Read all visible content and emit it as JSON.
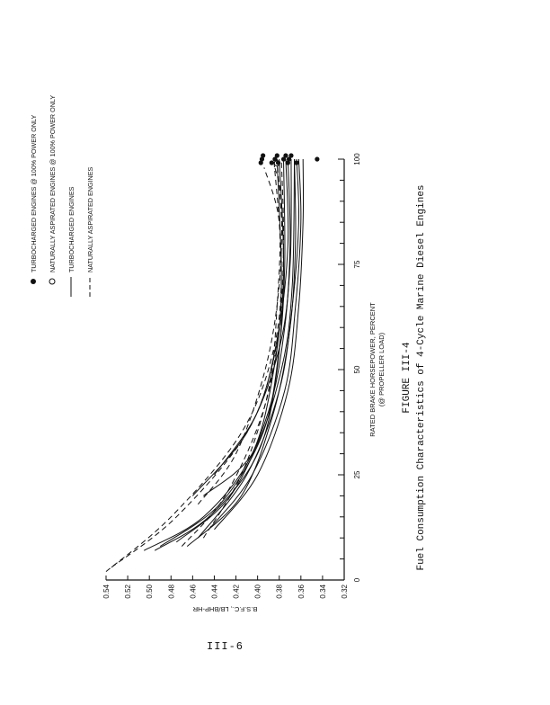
{
  "page_number": "III-6",
  "chart_data": {
    "type": "line",
    "title": "Fuel Consumption Characteristics of 4-Cycle Marine Diesel Engines",
    "figure_label": "FIGURE III-4",
    "xlabel": "RATED BRAKE HORSEPOWER, PERCENT",
    "xlabel_sub": "(@ PROPELLER LOAD)",
    "ylabel": "B.S.F.C., LB/BHP-HR",
    "xlim": [
      0,
      100
    ],
    "ylim": [
      0.32,
      0.54
    ],
    "x_ticks": [
      "0",
      "25",
      "50",
      "75",
      "100"
    ],
    "y_ticks": [
      "0.32",
      "0.34",
      "0.36",
      "0.38",
      "0.40",
      "0.42",
      "0.44",
      "0.46",
      "0.48",
      "0.50",
      "0.52",
      "0.54"
    ],
    "legend": [
      {
        "label": "NATURALLY ASPIRATED ENGINES",
        "style": "dashed"
      },
      {
        "label": "TURBOCHARGED ENGINES",
        "style": "solid"
      },
      {
        "label": "NATURALLY ASPIRATED ENGINES @ 100% POWER ONLY",
        "style": "open-circle"
      },
      {
        "label": "TURBOCHARGED ENGINES @ 100% POWER ONLY",
        "style": "filled-circle"
      }
    ],
    "legend_placement": "top, rotated",
    "grid": false,
    "series": [
      {
        "style": "dashed",
        "x": [
          2,
          15,
          35,
          55,
          75,
          100
        ],
        "y": [
          0.54,
          0.48,
          0.415,
          0.385,
          0.378,
          0.385
        ]
      },
      {
        "style": "dashed",
        "x": [
          3,
          15,
          35,
          55,
          75,
          100
        ],
        "y": [
          0.535,
          0.475,
          0.41,
          0.383,
          0.376,
          0.382
        ]
      },
      {
        "style": "dashed",
        "x": [
          8,
          20,
          40,
          60,
          80,
          100
        ],
        "y": [
          0.47,
          0.43,
          0.395,
          0.38,
          0.376,
          0.378
        ]
      },
      {
        "style": "dashed",
        "x": [
          10,
          25,
          45,
          65,
          85,
          98
        ],
        "y": [
          0.45,
          0.415,
          0.39,
          0.382,
          0.38,
          0.394
        ]
      },
      {
        "style": "dashed",
        "x": [
          18,
          30,
          50,
          70,
          90,
          98
        ],
        "y": [
          0.455,
          0.42,
          0.393,
          0.38,
          0.378,
          0.384
        ]
      },
      {
        "style": "solid",
        "x": [
          7,
          15,
          30,
          50,
          70,
          100
        ],
        "y": [
          0.505,
          0.45,
          0.405,
          0.385,
          0.378,
          0.382
        ]
      },
      {
        "style": "solid",
        "x": [
          7,
          15,
          30,
          50,
          75,
          100
        ],
        "y": [
          0.495,
          0.445,
          0.4,
          0.382,
          0.376,
          0.38
        ]
      },
      {
        "style": "solid",
        "x": [
          8,
          18,
          35,
          55,
          75,
          100
        ],
        "y": [
          0.49,
          0.435,
          0.395,
          0.38,
          0.375,
          0.376
        ]
      },
      {
        "style": "solid",
        "x": [
          9,
          20,
          40,
          60,
          80,
          100
        ],
        "y": [
          0.475,
          0.425,
          0.39,
          0.375,
          0.37,
          0.372
        ]
      },
      {
        "style": "solid",
        "x": [
          8,
          20,
          40,
          60,
          80,
          100
        ],
        "y": [
          0.465,
          0.415,
          0.385,
          0.37,
          0.365,
          0.366
        ]
      },
      {
        "style": "solid",
        "x": [
          10,
          25,
          45,
          65,
          85,
          100
        ],
        "y": [
          0.455,
          0.41,
          0.38,
          0.368,
          0.362,
          0.364
        ]
      },
      {
        "style": "solid",
        "x": [
          12,
          25,
          45,
          65,
          85,
          100
        ],
        "y": [
          0.445,
          0.405,
          0.375,
          0.365,
          0.36,
          0.362
        ]
      },
      {
        "style": "solid",
        "x": [
          12,
          25,
          45,
          65,
          85,
          100
        ],
        "y": [
          0.44,
          0.4,
          0.372,
          0.362,
          0.358,
          0.358
        ]
      },
      {
        "style": "solid",
        "x": [
          20,
          35,
          55,
          75,
          100
        ],
        "y": [
          0.46,
          0.41,
          0.38,
          0.37,
          0.369
        ]
      },
      {
        "style": "solid",
        "x": [
          20,
          30,
          50,
          70,
          100
        ],
        "y": [
          0.45,
          0.405,
          0.378,
          0.368,
          0.366
        ]
      },
      {
        "style": "solid",
        "x": [
          25,
          40,
          60,
          80,
          100
        ],
        "y": [
          0.44,
          0.4,
          0.38,
          0.372,
          0.374
        ]
      }
    ],
    "points_naturally_aspirated_100": {
      "x": [
        99
      ],
      "y": [
        0.382
      ]
    },
    "points_turbocharged_100": {
      "x": [
        100,
        100,
        100,
        100,
        100,
        100,
        100,
        100,
        100,
        100,
        100,
        100,
        100,
        100
      ],
      "y": [
        0.397,
        0.396,
        0.395,
        0.387,
        0.384,
        0.382,
        0.381,
        0.376,
        0.374,
        0.372,
        0.371,
        0.369,
        0.364,
        0.345
      ]
    }
  }
}
